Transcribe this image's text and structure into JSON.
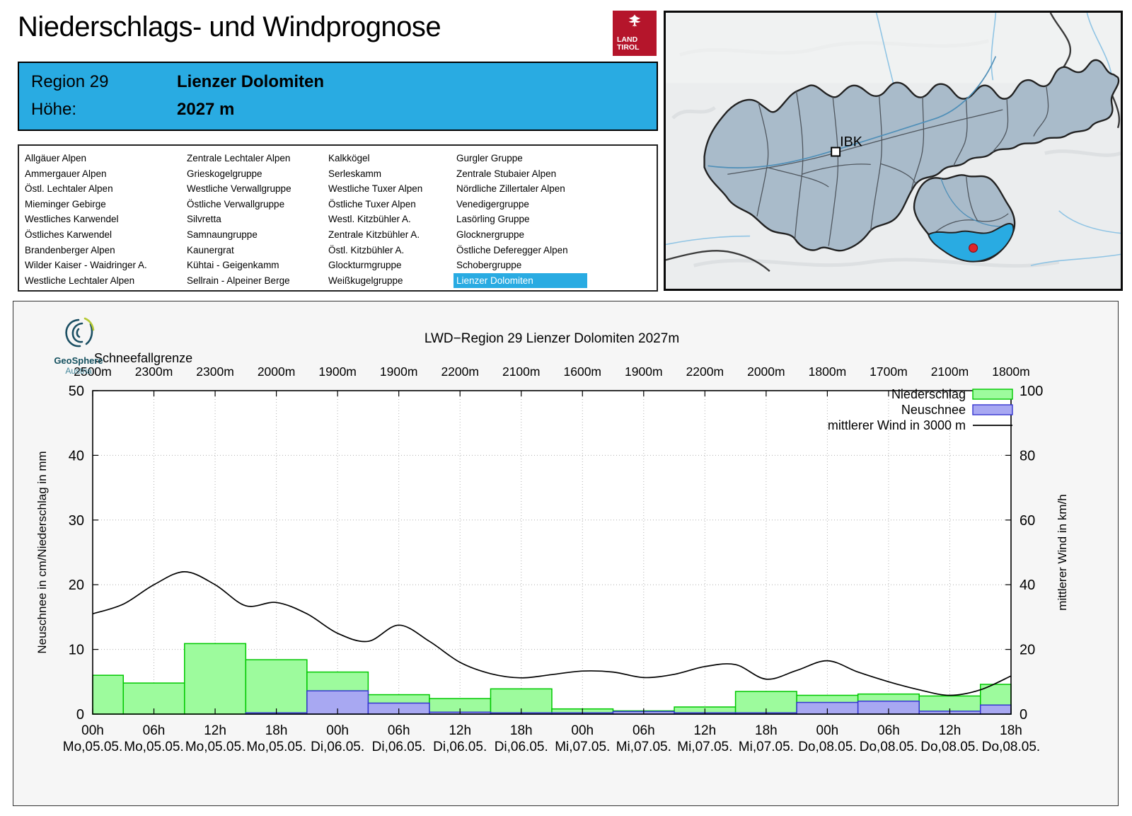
{
  "header": {
    "title": "Niederschlags- und Windprognose",
    "logo_line1": "LAND",
    "logo_line2": "TIROL"
  },
  "region_info": {
    "region_label": "Region 29",
    "region_name": "Lienzer Dolomiten",
    "elevation_label": "Höhe:",
    "elevation_value": "2027 m"
  },
  "region_list": {
    "selected": "Lienzer Dolomiten",
    "columns": [
      [
        "Allgäuer Alpen",
        "Ammergauer Alpen",
        "Östl. Lechtaler Alpen",
        "Mieminger Gebirge",
        "Westliches Karwendel",
        "Östliches Karwendel",
        "Brandenberger Alpen",
        "Wilder Kaiser - Waidringer A.",
        "Westliche Lechtaler Alpen"
      ],
      [
        "Zentrale Lechtaler Alpen",
        "Grieskogelgruppe",
        "Westliche Verwallgruppe",
        "Östliche Verwallgruppe",
        "Silvretta",
        "Samnaungruppe",
        "Kaunergrat",
        "Kühtai - Geigenkamm",
        "Sellrain - Alpeiner Berge"
      ],
      [
        "Kalkkögel",
        "Serleskamm",
        "Westliche Tuxer Alpen",
        "Östliche Tuxer Alpen",
        "Westl. Kitzbühler A.",
        "Zentrale Kitzbühler A.",
        "Östl. Kitzbühler A.",
        "Glockturmgruppe",
        "Weißkugelgruppe"
      ],
      [
        "Gurgler Gruppe",
        "Zentrale Stubaier Alpen",
        "Nördliche Zillertaler Alpen",
        "Venedigergruppe",
        "Lasörling Gruppe",
        "Glocknergruppe",
        "Östliche Deferegger Alpen",
        "Schobergruppe",
        "Lienzer Dolomiten"
      ]
    ]
  },
  "map": {
    "city_label": "IBK"
  },
  "branding": {
    "geosphere_line1": "GeoSphere",
    "geosphere_line2": "Austria"
  },
  "colors": {
    "accent_blue": "#29abe2",
    "logo_red": "#b5152b",
    "bar_green_fill": "#9dfb9d",
    "bar_green_stroke": "#00c800",
    "bar_blue_fill": "#a8a8f2",
    "bar_blue_stroke": "#3535d0",
    "wind_line": "#000000",
    "map_region_fill": "#a9bbca",
    "map_region_stroke": "#3c4248",
    "map_highlight": "#29abe2",
    "marker_red": "#e0252b",
    "geosphere_dark": "#14505f",
    "geosphere_light": "#44889c"
  },
  "chart_data": {
    "type": "bar+line",
    "title": "LWD−Region 29 Lienzer Dolomiten 2027m",
    "snowline": {
      "label": "Schneefallgrenze",
      "values": [
        "2500m",
        "2300m",
        "2300m",
        "2000m",
        "1900m",
        "1900m",
        "2200m",
        "2100m",
        "1600m",
        "1900m",
        "2200m",
        "2000m",
        "1800m",
        "1700m",
        "2100m",
        "1800m"
      ]
    },
    "x_hours": [
      0,
      6,
      12,
      18,
      24,
      30,
      36,
      42,
      48,
      54,
      60,
      66,
      72,
      78,
      84,
      90
    ],
    "x_labels_hour": [
      "00h",
      "06h",
      "12h",
      "18h",
      "00h",
      "06h",
      "12h",
      "18h",
      "00h",
      "06h",
      "12h",
      "18h",
      "00h",
      "06h",
      "12h",
      "18h"
    ],
    "x_labels_day": [
      "Mo,05.05.",
      "Mo,05.05.",
      "Mo,05.05.",
      "Mo,05.05.",
      "Di,06.05.",
      "Di,06.05.",
      "Di,06.05.",
      "Di,06.05.",
      "Mi,07.05.",
      "Mi,07.05.",
      "Mi,07.05.",
      "Mi,07.05.",
      "Do,08.05.",
      "Do,08.05.",
      "Do,08.05.",
      "Do,08.05."
    ],
    "ylabel_left": "Neuschnee in cm/Niederschlag in mm",
    "ylabel_right": "mittlerer Wind in km/h",
    "ylim_left": [
      0,
      50
    ],
    "ylim_right": [
      0,
      100
    ],
    "yticks_left": [
      0,
      10,
      20,
      30,
      40,
      50
    ],
    "yticks_right": [
      0,
      20,
      40,
      60,
      80,
      100
    ],
    "grid": true,
    "legend_position": "top-right",
    "series": [
      {
        "name": "Niederschlag",
        "type": "bar",
        "unit": "mm",
        "axis": "left",
        "values": [
          6.0,
          4.8,
          10.9,
          8.4,
          6.5,
          3.0,
          2.4,
          3.9,
          0.8,
          0.5,
          1.1,
          3.5,
          2.9,
          3.1,
          2.8,
          4.6
        ]
      },
      {
        "name": "Neuschnee",
        "type": "bar",
        "unit": "cm",
        "axis": "left",
        "values": [
          0,
          0,
          0,
          0.2,
          3.6,
          1.7,
          0.3,
          0.2,
          0.2,
          0.4,
          0.2,
          0.2,
          1.8,
          2.0,
          0.45,
          1.4
        ]
      },
      {
        "name": "mittlerer Wind in 3000 m",
        "type": "line",
        "unit": "km/h",
        "axis": "right",
        "x_step_hours": 3,
        "values": [
          31,
          34,
          40,
          44,
          40,
          33.5,
          34.5,
          31,
          25,
          22.5,
          27.5,
          22.5,
          16,
          12.5,
          11.2,
          12.2,
          13.3,
          13,
          11.3,
          12.3,
          14.7,
          15.3,
          10.8,
          13.5,
          16.5,
          13,
          10,
          7.5,
          5.8,
          7.5,
          11.8
        ]
      }
    ]
  }
}
